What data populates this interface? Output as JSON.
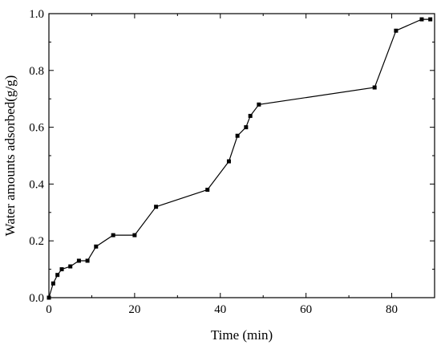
{
  "chart_data": {
    "type": "line",
    "xlabel": "Time (min)",
    "ylabel": "Water amounts adsorbed(g/g)",
    "xlim": [
      0,
      90
    ],
    "ylim": [
      0.0,
      1.0
    ],
    "x_ticks": [
      "0",
      "20",
      "40",
      "60",
      "80"
    ],
    "y_ticks": [
      "0.0",
      "0.2",
      "0.4",
      "0.6",
      "0.8",
      "1.0"
    ],
    "grid": false,
    "legend": "none",
    "series": [
      {
        "marker": "square",
        "color": "#000000",
        "points": [
          {
            "x": 0,
            "y": 0.0
          },
          {
            "x": 1,
            "y": 0.05
          },
          {
            "x": 2,
            "y": 0.08
          },
          {
            "x": 3,
            "y": 0.1
          },
          {
            "x": 5,
            "y": 0.11
          },
          {
            "x": 7,
            "y": 0.13
          },
          {
            "x": 9,
            "y": 0.13
          },
          {
            "x": 11,
            "y": 0.18
          },
          {
            "x": 15,
            "y": 0.22
          },
          {
            "x": 20,
            "y": 0.22
          },
          {
            "x": 25,
            "y": 0.32
          },
          {
            "x": 37,
            "y": 0.38
          },
          {
            "x": 42,
            "y": 0.48
          },
          {
            "x": 44,
            "y": 0.57
          },
          {
            "x": 46,
            "y": 0.6
          },
          {
            "x": 47,
            "y": 0.64
          },
          {
            "x": 49,
            "y": 0.68
          },
          {
            "x": 76,
            "y": 0.74
          },
          {
            "x": 81,
            "y": 0.94
          },
          {
            "x": 87,
            "y": 0.98
          },
          {
            "x": 89,
            "y": 0.98
          }
        ]
      }
    ]
  }
}
